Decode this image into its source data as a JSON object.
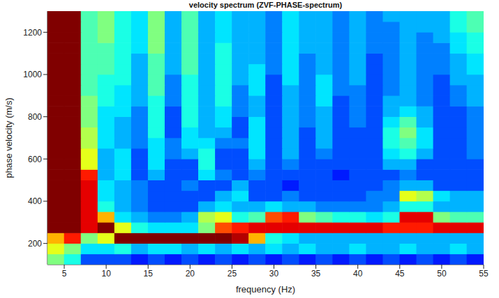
{
  "chart_data": {
    "type": "heatmap",
    "title": "velocity spectrum (ZVF-PHASE-spectrum)",
    "x_label": "frequency (Hz)",
    "y_label": "phase velocity (m/s)",
    "x": [
      4,
      6,
      8,
      10,
      12,
      14,
      16,
      18,
      20,
      22,
      24,
      26,
      28,
      30,
      32,
      34,
      36,
      38,
      40,
      42,
      44,
      46,
      48,
      50,
      52,
      54
    ],
    "y": [
      125,
      175,
      225,
      275,
      325,
      375,
      425,
      475,
      525,
      575,
      625,
      675,
      725,
      775,
      825,
      875,
      925,
      975,
      1025,
      1075,
      1125,
      1175,
      1225,
      1275
    ],
    "z": [
      [
        0.5,
        0.4,
        0.2,
        0.2,
        0.2,
        0.15,
        0.2,
        0.15,
        0.2,
        0.15,
        0.2,
        0.15,
        0.2,
        0.15,
        0.2,
        0.15,
        0.2,
        0.15,
        0.2,
        0.15,
        0.2,
        0.15,
        0.2,
        0.15,
        0.2,
        0.15
      ],
      [
        0.6,
        0.5,
        0.35,
        0.35,
        0.4,
        0.3,
        0.35,
        0.35,
        0.3,
        0.35,
        0.3,
        0.35,
        0.3,
        0.35,
        0.3,
        0.35,
        0.3,
        0.3,
        0.35,
        0.3,
        0.3,
        0.35,
        0.3,
        0.3,
        0.35,
        0.3
      ],
      [
        0.7,
        0.85,
        0.5,
        0.6,
        1,
        1,
        1,
        1,
        1,
        1,
        1,
        0.95,
        0.7,
        0.4,
        0.35,
        0.3,
        0.3,
        0.3,
        0.3,
        0.3,
        0.3,
        0.3,
        0.3,
        0.3,
        0.3,
        0.3
      ],
      [
        1,
        1,
        0.9,
        1,
        0.6,
        0.4,
        0.35,
        0.35,
        0.35,
        0.5,
        0.8,
        0.85,
        0.9,
        0.9,
        0.9,
        0.9,
        0.9,
        0.9,
        0.9,
        0.9,
        0.85,
        0.85,
        0.85,
        0.9,
        0.9,
        0.9
      ],
      [
        1,
        1,
        0.9,
        0.7,
        0.35,
        0.3,
        0.25,
        0.25,
        0.3,
        0.55,
        0.6,
        0.4,
        0.45,
        0.8,
        0.85,
        0.5,
        0.45,
        0.4,
        0.4,
        0.35,
        0.4,
        0.9,
        0.9,
        0.5,
        0.45,
        0.45
      ],
      [
        1,
        1,
        0.9,
        0.4,
        0.3,
        0.25,
        0.2,
        0.2,
        0.2,
        0.3,
        0.35,
        0.3,
        0.3,
        0.35,
        0.3,
        0.3,
        0.25,
        0.25,
        0.25,
        0.25,
        0.3,
        0.4,
        0.4,
        0.3,
        0.3,
        0.3
      ],
      [
        1,
        1,
        0.9,
        0.35,
        0.3,
        0.25,
        0.2,
        0.2,
        0.2,
        0.2,
        0.3,
        0.35,
        0.2,
        0.2,
        0.25,
        0.2,
        0.2,
        0.2,
        0.2,
        0.25,
        0.25,
        0.6,
        0.55,
        0.35,
        0.3,
        0.3
      ],
      [
        1,
        1,
        0.9,
        0.35,
        0.3,
        0.25,
        0.2,
        0.2,
        0.25,
        0.2,
        0.2,
        0.3,
        0.2,
        0.2,
        0.15,
        0.2,
        0.2,
        0.2,
        0.2,
        0.2,
        0.25,
        0.3,
        0.3,
        0.2,
        0.2,
        0.2
      ],
      [
        1,
        1,
        0.85,
        0.3,
        0.35,
        0.2,
        0.3,
        0.2,
        0.2,
        0.35,
        0.25,
        0.2,
        0.25,
        0.2,
        0.2,
        0.2,
        0.2,
        0.15,
        0.2,
        0.2,
        0.2,
        0.25,
        0.2,
        0.2,
        0.2,
        0.2
      ],
      [
        1,
        1,
        0.6,
        0.3,
        0.35,
        0.2,
        0.35,
        0.2,
        0.2,
        0.4,
        0.2,
        0.2,
        0.3,
        0.2,
        0.25,
        0.2,
        0.2,
        0.2,
        0.2,
        0.2,
        0.3,
        0.3,
        0.2,
        0.2,
        0.2,
        0.2
      ],
      [
        1,
        1,
        0.6,
        0.3,
        0.35,
        0.2,
        0.35,
        0.25,
        0.3,
        0.4,
        0.2,
        0.2,
        0.35,
        0.2,
        0.3,
        0.2,
        0.25,
        0.2,
        0.2,
        0.2,
        0.35,
        0.4,
        0.3,
        0.2,
        0.2,
        0.25
      ],
      [
        1,
        1,
        0.55,
        0.35,
        0.3,
        0.25,
        0.35,
        0.25,
        0.35,
        0.35,
        0.25,
        0.25,
        0.35,
        0.2,
        0.3,
        0.2,
        0.3,
        0.2,
        0.2,
        0.2,
        0.4,
        0.45,
        0.35,
        0.2,
        0.2,
        0.25
      ],
      [
        1,
        1,
        0.55,
        0.35,
        0.3,
        0.25,
        0.4,
        0.2,
        0.35,
        0.3,
        0.3,
        0.2,
        0.35,
        0.2,
        0.3,
        0.2,
        0.3,
        0.2,
        0.2,
        0.2,
        0.4,
        0.5,
        0.35,
        0.2,
        0.2,
        0.25
      ],
      [
        1,
        1,
        0.5,
        0.35,
        0.3,
        0.25,
        0.4,
        0.2,
        0.4,
        0.3,
        0.35,
        0.2,
        0.35,
        0.2,
        0.3,
        0.25,
        0.3,
        0.2,
        0.25,
        0.2,
        0.35,
        0.45,
        0.3,
        0.2,
        0.2,
        0.25
      ],
      [
        1,
        1,
        0.5,
        0.35,
        0.35,
        0.25,
        0.4,
        0.2,
        0.4,
        0.3,
        0.35,
        0.25,
        0.3,
        0.2,
        0.3,
        0.25,
        0.3,
        0.2,
        0.25,
        0.2,
        0.3,
        0.35,
        0.3,
        0.2,
        0.2,
        0.25
      ],
      [
        1,
        1,
        0.5,
        0.4,
        0.35,
        0.3,
        0.4,
        0.25,
        0.4,
        0.3,
        0.4,
        0.25,
        0.3,
        0.2,
        0.3,
        0.25,
        0.35,
        0.2,
        0.25,
        0.2,
        0.3,
        0.3,
        0.25,
        0.2,
        0.25,
        0.3
      ],
      [
        1,
        1,
        0.45,
        0.4,
        0.35,
        0.3,
        0.45,
        0.25,
        0.4,
        0.3,
        0.4,
        0.25,
        0.35,
        0.2,
        0.3,
        0.25,
        0.35,
        0.25,
        0.25,
        0.2,
        0.25,
        0.3,
        0.25,
        0.2,
        0.25,
        0.3
      ],
      [
        1,
        1,
        0.45,
        0.4,
        0.4,
        0.3,
        0.45,
        0.25,
        0.4,
        0.3,
        0.4,
        0.3,
        0.35,
        0.2,
        0.35,
        0.25,
        0.35,
        0.25,
        0.3,
        0.2,
        0.25,
        0.3,
        0.25,
        0.2,
        0.3,
        0.3
      ],
      [
        1,
        1,
        0.45,
        0.45,
        0.4,
        0.3,
        0.45,
        0.3,
        0.45,
        0.3,
        0.4,
        0.3,
        0.35,
        0.25,
        0.35,
        0.25,
        0.3,
        0.25,
        0.3,
        0.2,
        0.25,
        0.3,
        0.25,
        0.25,
        0.3,
        0.35
      ],
      [
        1,
        1,
        0.45,
        0.45,
        0.4,
        0.3,
        0.45,
        0.3,
        0.45,
        0.3,
        0.4,
        0.3,
        0.3,
        0.25,
        0.35,
        0.25,
        0.3,
        0.25,
        0.3,
        0.2,
        0.25,
        0.3,
        0.25,
        0.25,
        0.3,
        0.35
      ],
      [
        1,
        1,
        0.45,
        0.45,
        0.4,
        0.35,
        0.5,
        0.3,
        0.45,
        0.3,
        0.4,
        0.3,
        0.3,
        0.25,
        0.35,
        0.3,
        0.3,
        0.25,
        0.3,
        0.25,
        0.25,
        0.3,
        0.25,
        0.25,
        0.35,
        0.4
      ],
      [
        1,
        1,
        0.45,
        0.5,
        0.4,
        0.35,
        0.5,
        0.3,
        0.45,
        0.3,
        0.35,
        0.3,
        0.3,
        0.25,
        0.35,
        0.3,
        0.3,
        0.25,
        0.3,
        0.25,
        0.25,
        0.3,
        0.25,
        0.3,
        0.35,
        0.4
      ],
      [
        1,
        1,
        0.45,
        0.5,
        0.4,
        0.35,
        0.5,
        0.3,
        0.45,
        0.3,
        0.35,
        0.3,
        0.3,
        0.25,
        0.35,
        0.3,
        0.3,
        0.25,
        0.3,
        0.25,
        0.25,
        0.3,
        0.3,
        0.3,
        0.4,
        0.45
      ],
      [
        1,
        1,
        0.45,
        0.5,
        0.4,
        0.35,
        0.5,
        0.3,
        0.45,
        0.3,
        0.35,
        0.3,
        0.3,
        0.25,
        0.35,
        0.3,
        0.3,
        0.25,
        0.3,
        0.25,
        0.3,
        0.3,
        0.3,
        0.3,
        0.4,
        0.45
      ]
    ],
    "zlim": [
      0,
      1
    ],
    "xlim": [
      3,
      55
    ],
    "ylim": [
      100,
      1300
    ],
    "xticks": [
      5,
      10,
      15,
      20,
      25,
      30,
      35,
      40,
      45,
      50,
      55
    ],
    "yticks": [
      200,
      400,
      600,
      800,
      1000,
      1200
    ]
  }
}
